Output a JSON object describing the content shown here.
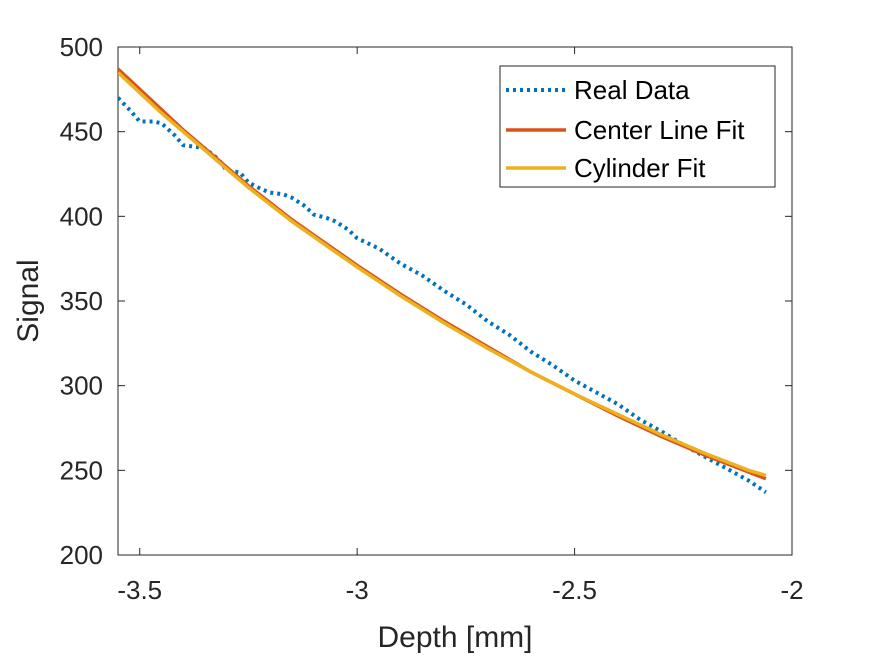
{
  "chart_data": {
    "type": "line",
    "title": "",
    "xlabel": "Depth [mm]",
    "ylabel": "Signal",
    "xlim": [
      -3.55,
      -2.0
    ],
    "ylim": [
      200,
      500
    ],
    "xticks": [
      -3.5,
      -3,
      -2.5,
      -2
    ],
    "xtick_labels": [
      "-3.5",
      "-3",
      "-2.5",
      "-2"
    ],
    "yticks": [
      200,
      250,
      300,
      350,
      400,
      450,
      500
    ],
    "ytick_labels": [
      "200",
      "250",
      "300",
      "350",
      "400",
      "450",
      "500"
    ],
    "grid": false,
    "legend_position": "top-right",
    "series": [
      {
        "name": "Real Data",
        "color": "#0072BD",
        "style": "dotted",
        "x": [
          -3.55,
          -3.52,
          -3.5,
          -3.47,
          -3.45,
          -3.42,
          -3.4,
          -3.37,
          -3.35,
          -3.32,
          -3.3,
          -3.27,
          -3.25,
          -3.22,
          -3.2,
          -3.17,
          -3.15,
          -3.12,
          -3.1,
          -3.07,
          -3.05,
          -3.02,
          -3.0,
          -2.95,
          -2.9,
          -2.85,
          -2.8,
          -2.75,
          -2.7,
          -2.65,
          -2.6,
          -2.55,
          -2.5,
          -2.45,
          -2.4,
          -2.35,
          -2.3,
          -2.25,
          -2.2,
          -2.15,
          -2.1,
          -2.06
        ],
        "y": [
          470,
          462,
          456,
          456,
          455,
          448,
          442,
          441,
          440,
          434,
          427,
          426,
          420,
          416,
          414,
          413,
          411,
          406,
          401,
          399,
          397,
          392,
          387,
          381,
          372,
          365,
          356,
          348,
          338,
          330,
          320,
          312,
          303,
          296,
          289,
          280,
          273,
          265,
          258,
          251,
          244,
          237
        ]
      },
      {
        "name": "Center Line Fit",
        "color": "#D95319",
        "style": "solid",
        "x": [
          -3.55,
          -3.5,
          -3.45,
          -3.4,
          -3.35,
          -3.3,
          -3.25,
          -3.2,
          -3.15,
          -3.1,
          -3.05,
          -3.0,
          -2.9,
          -2.8,
          -2.7,
          -2.6,
          -2.5,
          -2.4,
          -2.3,
          -2.2,
          -2.1,
          -2.06
        ],
        "y": [
          487,
          475,
          463,
          451,
          440,
          429,
          418,
          408,
          398,
          389,
          380,
          371,
          354,
          338,
          323,
          308,
          295,
          282,
          270,
          259,
          249,
          245
        ]
      },
      {
        "name": "Cylinder Fit",
        "color": "#EDB120",
        "style": "solid",
        "x": [
          -3.55,
          -3.5,
          -3.45,
          -3.4,
          -3.35,
          -3.3,
          -3.25,
          -3.2,
          -3.15,
          -3.1,
          -3.05,
          -3.0,
          -2.9,
          -2.8,
          -2.7,
          -2.6,
          -2.5,
          -2.4,
          -2.3,
          -2.2,
          -2.1,
          -2.06
        ],
        "y": [
          485,
          473,
          461,
          450,
          439,
          428,
          417,
          407,
          397,
          388,
          379,
          370,
          353,
          337,
          322,
          308,
          295,
          283,
          271,
          260,
          250,
          247
        ]
      }
    ]
  }
}
